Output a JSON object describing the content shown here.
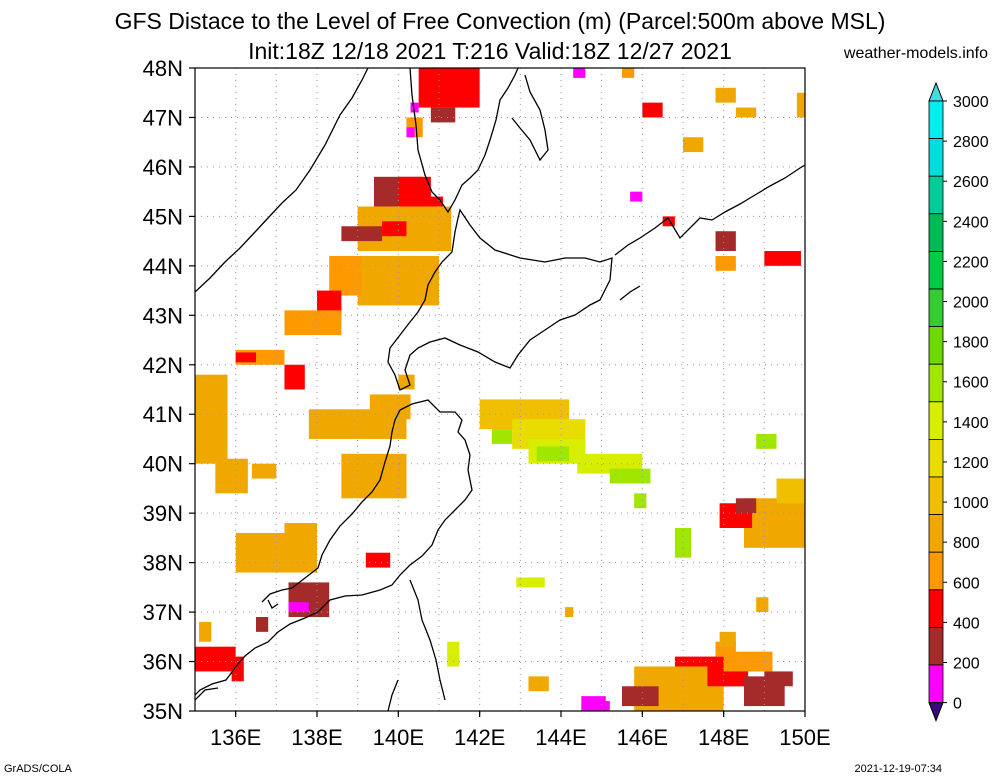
{
  "header": {
    "title_line1": "GFS Distace to the Level of Free Convection (m) (Parcel:500m above MSL)",
    "title_line2": "Init:18Z 12/18 2021 T:216 Valid:18Z 12/27 2021",
    "website": "weather-models.info"
  },
  "footer": {
    "left": "GrADS/COLA",
    "right": "2021-12-19-07:34"
  },
  "map": {
    "lat_range": [
      35,
      48
    ],
    "lon_range": [
      135,
      150
    ],
    "lat_labels": [
      "35N",
      "36N",
      "37N",
      "38N",
      "39N",
      "40N",
      "41N",
      "42N",
      "43N",
      "44N",
      "45N",
      "46N",
      "47N",
      "48N"
    ],
    "lon_labels": [
      "136E",
      "138E",
      "140E",
      "142E",
      "144E",
      "146E",
      "148E",
      "150E"
    ],
    "grid": true,
    "colors": {
      "below_200": "#ff00ff",
      "200_400": "#a52a2a",
      "400_600": "#ff0000",
      "600_800": "#ff9900",
      "800_1000": "#f0a800",
      "1000_1200": "#f0c000",
      "1200_1400": "#e8dc00",
      "1400_1600": "#d8ee00",
      "1600_1800": "#a0e600",
      "1800_2000": "#6ed800"
    }
  },
  "colorbar": {
    "labels": [
      "0",
      "200",
      "400",
      "600",
      "800",
      "1000",
      "1200",
      "1400",
      "1600",
      "1800",
      "2000",
      "2200",
      "2400",
      "2600",
      "2800",
      "3000"
    ],
    "colors": [
      "#3a0a7a",
      "#ff00ff",
      "#a52a2a",
      "#ff0000",
      "#ff9900",
      "#f0a800",
      "#f0c000",
      "#e8dc00",
      "#d8ee00",
      "#a0e600",
      "#6ed800",
      "#33cc33",
      "#00cc44",
      "#00bb55",
      "#00cc99",
      "#00dddd",
      "#00eeee"
    ],
    "under_color": "#3a0a7a",
    "over_color": "#44dddd"
  }
}
